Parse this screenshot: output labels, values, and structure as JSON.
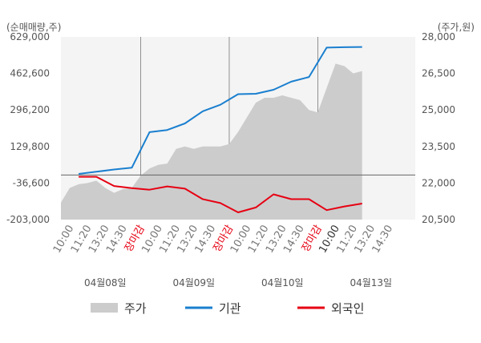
{
  "chart_data": {
    "type": "line",
    "left_axis_label": "(순매매량,주)",
    "right_axis_label": "(주가,원)",
    "left_ticks": [
      "629,000",
      "462,600",
      "296,200",
      "129,800",
      "-36,600",
      "-203,000"
    ],
    "left_tick_values": [
      629000,
      462600,
      296200,
      129800,
      -36600,
      -203000
    ],
    "left_range": [
      -203000,
      629000
    ],
    "right_ticks": [
      "28,000",
      "26,500",
      "25,000",
      "23,500",
      "22,000",
      "20,500"
    ],
    "right_tick_values": [
      28000,
      26500,
      25000,
      23500,
      22000,
      20500
    ],
    "right_range": [
      20500,
      28000
    ],
    "x_labels": [
      {
        "text": "10:00",
        "color": "#777777"
      },
      {
        "text": "11:20",
        "color": "#777777"
      },
      {
        "text": "13:20",
        "color": "#777777"
      },
      {
        "text": "14:30",
        "color": "#777777"
      },
      {
        "text": "장마감",
        "color": "#e60012"
      },
      {
        "text": "10:00",
        "color": "#777777"
      },
      {
        "text": "11:20",
        "color": "#777777"
      },
      {
        "text": "13:20",
        "color": "#777777"
      },
      {
        "text": "14:30",
        "color": "#777777"
      },
      {
        "text": "장마감",
        "color": "#e60012"
      },
      {
        "text": "10:00",
        "color": "#777777"
      },
      {
        "text": "11:20",
        "color": "#777777"
      },
      {
        "text": "13:20",
        "color": "#777777"
      },
      {
        "text": "14:30",
        "color": "#777777"
      },
      {
        "text": "장마감",
        "color": "#e60012"
      },
      {
        "text": "10:00",
        "color": "#333333"
      },
      {
        "text": "11:20",
        "color": "#777777"
      },
      {
        "text": "13:20",
        "color": "#777777"
      },
      {
        "text": "14:30",
        "color": "#777777"
      }
    ],
    "dates": [
      "04월08일",
      "04월09일",
      "04월10일",
      "04월13일"
    ],
    "series": [
      {
        "name": "기관",
        "color": "#1a7fcf",
        "axis": "left",
        "x": [
          1,
          2,
          3,
          4,
          5,
          6,
          7,
          8,
          9,
          10,
          11,
          12,
          13,
          14,
          15,
          16,
          17
        ],
        "values": [
          5000,
          15000,
          25000,
          33000,
          195000,
          205000,
          235000,
          290000,
          320000,
          368000,
          370000,
          388000,
          425000,
          446000,
          580000,
          582000,
          583000
        ]
      },
      {
        "name": "외국인",
        "color": "#e60012",
        "axis": "left",
        "x": [
          1,
          2,
          3,
          4,
          5,
          6,
          7,
          8,
          9,
          10,
          11,
          12,
          13,
          14,
          15,
          16,
          17
        ],
        "values": [
          -8000,
          -8000,
          -50000,
          -60000,
          -67000,
          -52000,
          -62000,
          -110000,
          -128000,
          -170000,
          -148000,
          -88000,
          -110000,
          -110000,
          -160000,
          -143000,
          -130000
        ]
      },
      {
        "name": "주가",
        "color": "#cccccc",
        "axis": "right",
        "x": [
          0,
          0.5,
          1,
          1.5,
          2,
          2.5,
          3,
          3.5,
          4,
          4.5,
          5,
          5.5,
          6,
          6.5,
          7,
          7.5,
          8,
          8.5,
          9,
          9.5,
          10,
          10.5,
          11,
          11.5,
          12,
          12.5,
          13,
          13.5,
          14,
          14.5,
          15,
          15.5,
          16,
          16.5,
          17
        ],
        "values": [
          21200,
          21800,
          21950,
          22000,
          22100,
          21800,
          21600,
          21750,
          21800,
          22300,
          22600,
          22750,
          22800,
          23400,
          23500,
          23400,
          23500,
          23500,
          23500,
          23600,
          24100,
          24700,
          25300,
          25500,
          25500,
          25600,
          25500,
          25400,
          25000,
          24900,
          25900,
          26900,
          26800,
          26500,
          26600
        ]
      }
    ],
    "x_range": [
      0,
      20
    ],
    "sessions": [
      [
        0,
        4
      ],
      [
        5,
        9
      ],
      [
        10,
        14
      ],
      [
        15,
        19
      ]
    ],
    "session_dividers": [
      4.5,
      9.5,
      14.5
    ],
    "baseline_value": 0,
    "legend": [
      {
        "label": "주가",
        "style": "box",
        "color": "#cccccc"
      },
      {
        "label": "기관",
        "style": "line",
        "color": "#1a7fcf"
      },
      {
        "label": "외국인",
        "style": "line",
        "color": "#e60012"
      }
    ],
    "legend_position": "bottom",
    "grid": "vertical session dividers"
  }
}
